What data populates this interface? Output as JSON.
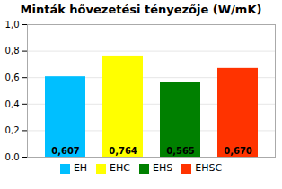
{
  "chart_data": {
    "type": "bar",
    "title": "Minták hővezetési tényezője (W/mK)",
    "categories": [
      "EH",
      "EHC",
      "EHS",
      "EHSC"
    ],
    "values": [
      0.607,
      0.764,
      0.565,
      0.67
    ],
    "value_labels": [
      "0,607",
      "0,764",
      "0,565",
      "0,670"
    ],
    "data_labels": true,
    "colors": [
      "#00BFFF",
      "#FFFF00",
      "#008000",
      "#FF3300"
    ],
    "ylim": [
      0,
      1.0
    ],
    "yticks": [
      {
        "value": 0.0,
        "label": "0,0"
      },
      {
        "value": 0.2,
        "label": "0,2"
      },
      {
        "value": 0.4,
        "label": "0,4"
      },
      {
        "value": 0.6,
        "label": "0,6"
      },
      {
        "value": 0.8,
        "label": "0,8"
      },
      {
        "value": 1.0,
        "label": "1,0"
      }
    ],
    "grid": true,
    "tick_labels": "y",
    "legend": "bottom"
  }
}
